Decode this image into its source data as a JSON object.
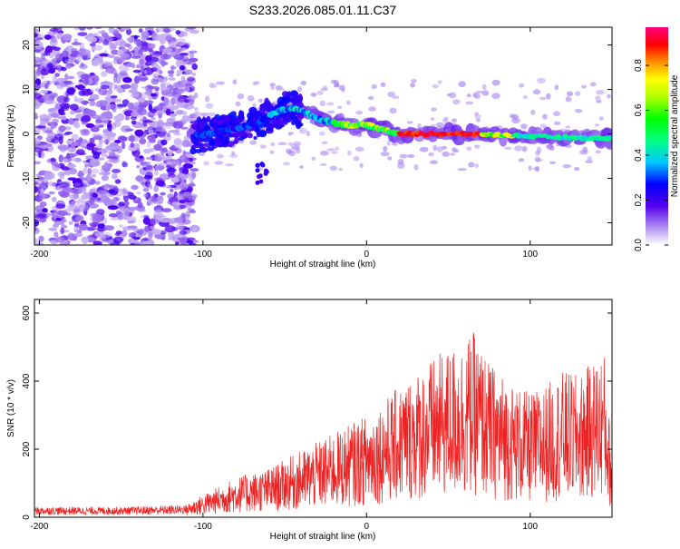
{
  "title": "S233.2026.085.01.11.C37",
  "chart_data": [
    {
      "type": "heatmap",
      "xlabel": "Height of straight line (km)",
      "ylabel": "Frequency (Hz)",
      "xlim": [
        -203,
        150
      ],
      "ylim": [
        -25,
        24
      ],
      "xticks": [
        -200,
        -100,
        0,
        100
      ],
      "yticks": [
        -20,
        -10,
        0,
        10,
        20
      ],
      "colorbar": {
        "label": "Normalized spectral amplitude",
        "range": [
          0.0,
          0.97
        ],
        "ticks": [
          0.0,
          0.2,
          0.4,
          0.6,
          0.8
        ],
        "tick_labels": [
          "0.0",
          "0.2",
          "0.4",
          "0.6",
          "0.8"
        ]
      },
      "ridge": {
        "description_points_km_hz": [
          [
            -105,
            -0.5
          ],
          [
            -90,
            0.5
          ],
          [
            -70,
            2
          ],
          [
            -55,
            5
          ],
          [
            -45,
            6
          ],
          [
            -30,
            3.5
          ],
          [
            -20,
            2.5
          ],
          [
            -10,
            2
          ],
          [
            0,
            2
          ],
          [
            10,
            1
          ],
          [
            20,
            0
          ],
          [
            40,
            0
          ],
          [
            60,
            0
          ],
          [
            80,
            -0.2
          ],
          [
            100,
            -0.5
          ],
          [
            120,
            -0.8
          ],
          [
            150,
            -1
          ]
        ],
        "peak_amplitude": 0.97,
        "peak_range_km": [
          20,
          70
        ]
      },
      "noise_region_km": [
        -203,
        -105
      ]
    },
    {
      "type": "line",
      "xlabel": "Height of straight line (km)",
      "ylabel": "SNR (10 * v/v)",
      "xlim": [
        -203,
        150
      ],
      "ylim": [
        0,
        640
      ],
      "xticks": [
        -200,
        -100,
        0,
        100
      ],
      "yticks": [
        0,
        200,
        400,
        600
      ],
      "series": [
        {
          "name": "SNR",
          "color": "#ee2222",
          "envelope_points": [
            [
              -203,
              25
            ],
            [
              -150,
              25
            ],
            [
              -110,
              30
            ],
            [
              -95,
              60
            ],
            [
              -80,
              90
            ],
            [
              -60,
              110
            ],
            [
              -40,
              150
            ],
            [
              -20,
              190
            ],
            [
              0,
              230
            ],
            [
              15,
              280
            ],
            [
              30,
              330
            ],
            [
              45,
              370
            ],
            [
              60,
              400
            ],
            [
              65,
              420
            ],
            [
              75,
              350
            ],
            [
              90,
              300
            ],
            [
              100,
              280
            ],
            [
              110,
              300
            ],
            [
              120,
              330
            ],
            [
              130,
              320
            ],
            [
              140,
              360
            ],
            [
              145,
              380
            ],
            [
              150,
              150
            ]
          ]
        }
      ]
    }
  ]
}
